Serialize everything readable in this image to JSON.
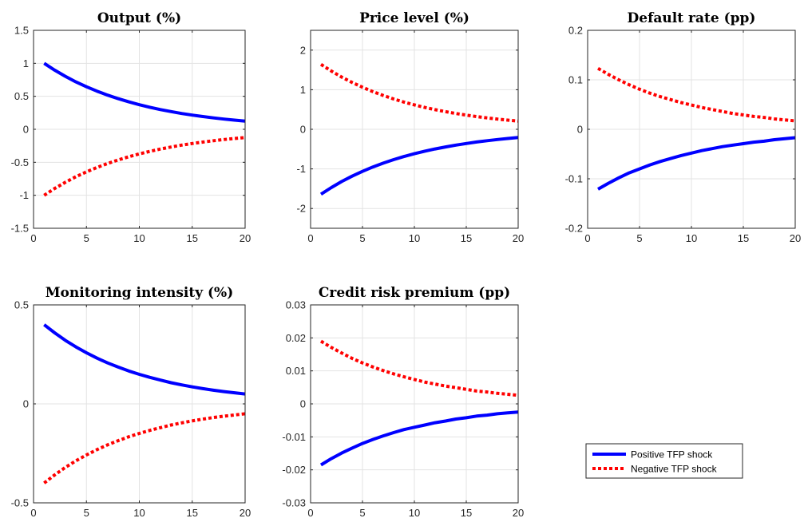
{
  "colors": {
    "positive": "#0000ff",
    "negative": "#ff0000",
    "grid": "#e3e3e3",
    "axis": "#262626"
  },
  "legend": {
    "placement": "bottom-right",
    "entries": [
      {
        "label": "Positive TFP shock",
        "color": "#0000ff",
        "style": "solid"
      },
      {
        "label": "Negative TFP shock",
        "color": "#ff0000",
        "style": "dotted"
      }
    ]
  },
  "chart_data": [
    {
      "type": "line",
      "title": "Output (%)",
      "xlabel": "",
      "ylabel": "",
      "xlim": [
        0,
        20
      ],
      "ylim": [
        -1.5,
        1.5
      ],
      "xticks": [
        0,
        5,
        10,
        15,
        20
      ],
      "yticks": [
        -1.5,
        -1,
        -0.5,
        0,
        0.5,
        1,
        1.5
      ],
      "ytick_labels": [
        "-1.5",
        "-1",
        "-0.5",
        "0",
        "0.5",
        "1",
        "1.5"
      ],
      "grid": true,
      "x": [
        1,
        2,
        3,
        4,
        5,
        6,
        7,
        8,
        9,
        10,
        11,
        12,
        13,
        14,
        15,
        16,
        17,
        18,
        19,
        20
      ],
      "series": [
        {
          "name": "Positive TFP shock",
          "values": [
            1.0,
            0.896,
            0.803,
            0.719,
            0.645,
            0.578,
            0.518,
            0.464,
            0.416,
            0.372,
            0.334,
            0.299,
            0.268,
            0.24,
            0.215,
            0.193,
            0.173,
            0.155,
            0.139,
            0.124
          ]
        },
        {
          "name": "Negative TFP shock",
          "values": [
            -1.0,
            -0.896,
            -0.803,
            -0.719,
            -0.645,
            -0.578,
            -0.518,
            -0.464,
            -0.416,
            -0.372,
            -0.334,
            -0.299,
            -0.268,
            -0.24,
            -0.215,
            -0.193,
            -0.173,
            -0.155,
            -0.139,
            -0.124
          ]
        }
      ]
    },
    {
      "type": "line",
      "title": "Price level (%)",
      "xlabel": "",
      "ylabel": "",
      "xlim": [
        0,
        20
      ],
      "ylim": [
        -2.5,
        2.5
      ],
      "xticks": [
        0,
        5,
        10,
        15,
        20
      ],
      "yticks": [
        -2,
        -1,
        0,
        1,
        2
      ],
      "ytick_labels": [
        "-2",
        "-1",
        "0",
        "1",
        "2"
      ],
      "grid": true,
      "x": [
        1,
        2,
        3,
        4,
        5,
        6,
        7,
        8,
        9,
        10,
        11,
        12,
        13,
        14,
        15,
        16,
        17,
        18,
        19,
        20
      ],
      "series": [
        {
          "name": "Positive TFP shock",
          "values": [
            -1.64,
            -1.471,
            -1.319,
            -1.184,
            -1.062,
            -0.952,
            -0.854,
            -0.766,
            -0.688,
            -0.617,
            -0.553,
            -0.496,
            -0.445,
            -0.4,
            -0.358,
            -0.321,
            -0.288,
            -0.259,
            -0.232,
            -0.208
          ]
        },
        {
          "name": "Negative TFP shock",
          "values": [
            1.64,
            1.471,
            1.319,
            1.184,
            1.062,
            0.952,
            0.854,
            0.766,
            0.688,
            0.617,
            0.553,
            0.496,
            0.445,
            0.4,
            0.358,
            0.321,
            0.288,
            0.259,
            0.232,
            0.208
          ]
        }
      ]
    },
    {
      "type": "line",
      "title": "Default rate (pp)",
      "xlabel": "",
      "ylabel": "",
      "xlim": [
        0,
        20
      ],
      "ylim": [
        -0.2,
        0.2
      ],
      "xticks": [
        0,
        5,
        10,
        15,
        20
      ],
      "yticks": [
        -0.2,
        -0.1,
        0,
        0.1,
        0.2
      ],
      "ytick_labels": [
        "-0.2",
        "-0.1",
        "0",
        "0.1",
        "0.2"
      ],
      "grid": true,
      "x": [
        1,
        2,
        3,
        4,
        5,
        6,
        7,
        8,
        9,
        10,
        11,
        12,
        13,
        14,
        15,
        16,
        17,
        18,
        19,
        20
      ],
      "series": [
        {
          "name": "Positive TFP shock",
          "values": [
            -0.121,
            -0.109,
            -0.098,
            -0.088,
            -0.08,
            -0.072,
            -0.065,
            -0.059,
            -0.053,
            -0.048,
            -0.043,
            -0.039,
            -0.035,
            -0.032,
            -0.029,
            -0.026,
            -0.024,
            -0.021,
            -0.019,
            -0.017
          ]
        },
        {
          "name": "Negative TFP shock",
          "values": [
            0.123,
            0.111,
            0.1,
            0.09,
            0.081,
            0.073,
            0.066,
            0.06,
            0.054,
            0.049,
            0.044,
            0.04,
            0.036,
            0.032,
            0.029,
            0.026,
            0.024,
            0.021,
            0.019,
            0.017
          ]
        }
      ]
    },
    {
      "type": "line",
      "title": "Monitoring intensity (%)",
      "xlabel": "",
      "ylabel": "",
      "xlim": [
        0,
        20
      ],
      "ylim": [
        -0.5,
        0.5
      ],
      "xticks": [
        0,
        5,
        10,
        15,
        20
      ],
      "yticks": [
        -0.5,
        0,
        0.5
      ],
      "ytick_labels": [
        "-0.5",
        "0",
        "0.5"
      ],
      "grid": true,
      "x": [
        1,
        2,
        3,
        4,
        5,
        6,
        7,
        8,
        9,
        10,
        11,
        12,
        13,
        14,
        15,
        16,
        17,
        18,
        19,
        20
      ],
      "series": [
        {
          "name": "Positive TFP shock",
          "values": [
            0.4,
            0.359,
            0.321,
            0.288,
            0.258,
            0.231,
            0.207,
            0.186,
            0.166,
            0.149,
            0.134,
            0.12,
            0.107,
            0.096,
            0.086,
            0.077,
            0.069,
            0.062,
            0.056,
            0.05
          ]
        },
        {
          "name": "Negative TFP shock",
          "values": [
            -0.4,
            -0.359,
            -0.321,
            -0.288,
            -0.258,
            -0.231,
            -0.207,
            -0.186,
            -0.166,
            -0.149,
            -0.134,
            -0.12,
            -0.107,
            -0.096,
            -0.086,
            -0.077,
            -0.069,
            -0.062,
            -0.056,
            -0.05
          ]
        }
      ]
    },
    {
      "type": "line",
      "title": "Credit risk premium (pp)",
      "xlabel": "",
      "ylabel": "",
      "xlim": [
        0,
        20
      ],
      "ylim": [
        -0.03,
        0.03
      ],
      "xticks": [
        0,
        5,
        10,
        15,
        20
      ],
      "yticks": [
        -0.03,
        -0.02,
        -0.01,
        0,
        0.01,
        0.02,
        0.03
      ],
      "ytick_labels": [
        "-0.03",
        "-0.02",
        "-0.01",
        "0",
        "0.01",
        "0.02",
        "0.03"
      ],
      "grid": true,
      "x": [
        1,
        2,
        3,
        4,
        5,
        6,
        7,
        8,
        9,
        10,
        11,
        12,
        13,
        14,
        15,
        16,
        17,
        18,
        19,
        20
      ],
      "series": [
        {
          "name": "Positive TFP shock",
          "values": [
            -0.0185,
            -0.0166,
            -0.0149,
            -0.0134,
            -0.012,
            -0.0108,
            -0.0097,
            -0.0087,
            -0.0078,
            -0.0071,
            -0.0064,
            -0.0057,
            -0.0052,
            -0.0046,
            -0.0042,
            -0.0037,
            -0.0034,
            -0.003,
            -0.0027,
            -0.0025
          ]
        },
        {
          "name": "Negative TFP shock",
          "values": [
            0.019,
            0.0171,
            0.0154,
            0.0138,
            0.0124,
            0.0112,
            0.0101,
            0.0091,
            0.0082,
            0.0074,
            0.0066,
            0.006,
            0.0054,
            0.0049,
            0.0044,
            0.0039,
            0.0036,
            0.0032,
            0.0029,
            0.0026
          ]
        }
      ]
    }
  ]
}
